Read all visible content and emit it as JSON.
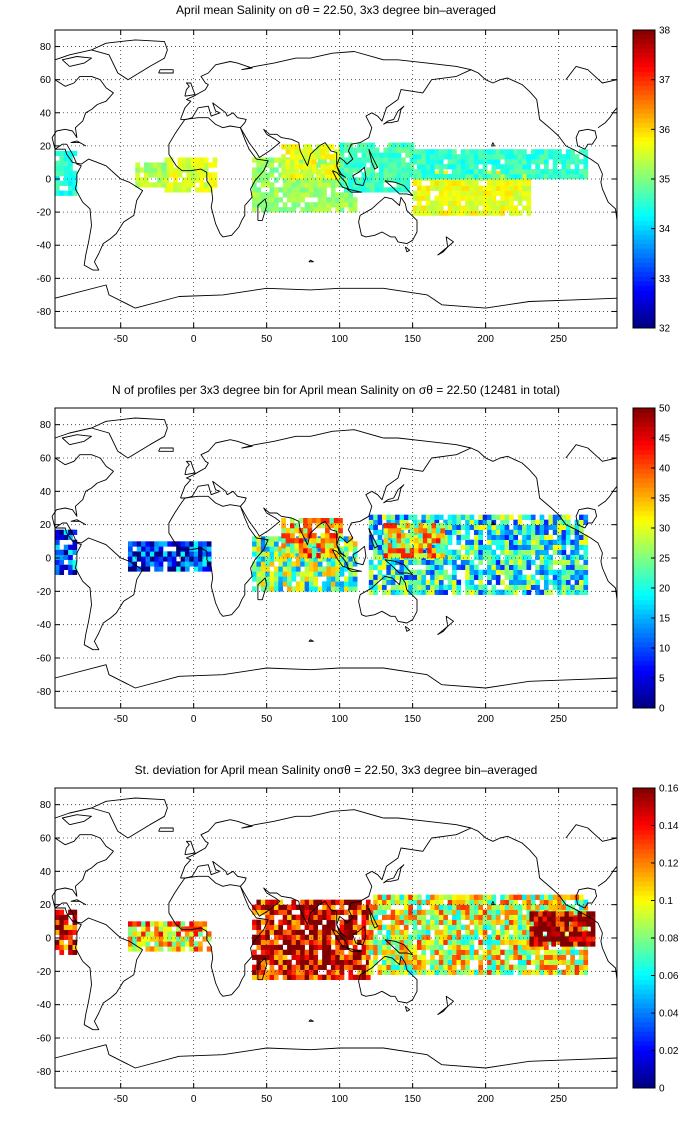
{
  "chart_data": [
    {
      "type": "heatmap",
      "id": "p1",
      "title": "April mean Salinity on σθ = 22.50, 3x3 degree bin–averaged",
      "x_ticks": [
        "-50",
        "0",
        "50",
        "100",
        "150",
        "200",
        "250"
      ],
      "y_ticks": [
        "80",
        "60",
        "40",
        "20",
        "0",
        "-20",
        "-40",
        "-60",
        "-80"
      ],
      "xlim": [
        -95,
        290
      ],
      "ylim": [
        -90,
        90
      ],
      "grid": true,
      "colorbar": {
        "min": 32,
        "max": 38,
        "ticks": [
          "38",
          "37",
          "36",
          "35",
          "34",
          "33",
          "32"
        ]
      },
      "regions": [
        {
          "x0": -95,
          "x1": -80,
          "y0": -10,
          "y1": 15,
          "value": 34.4
        },
        {
          "x0": -20,
          "x1": 15,
          "y0": -8,
          "y1": 12,
          "value": 35.5
        },
        {
          "x0": -40,
          "x1": -20,
          "y0": -5,
          "y1": 10,
          "value": 35.2
        },
        {
          "x0": 40,
          "x1": 110,
          "y0": -20,
          "y1": 12,
          "value": 35.1
        },
        {
          "x0": 60,
          "x1": 100,
          "y0": 0,
          "y1": 20,
          "value": 35.6
        },
        {
          "x0": 100,
          "x1": 150,
          "y0": -8,
          "y1": 22,
          "value": 34.6
        },
        {
          "x0": 150,
          "x1": 230,
          "y0": -22,
          "y1": 5,
          "value": 35.6
        },
        {
          "x0": 150,
          "x1": 270,
          "y0": 0,
          "y1": 18,
          "value": 34.5
        }
      ]
    },
    {
      "type": "heatmap",
      "id": "p2",
      "title": "N of profiles per 3x3 degree bin for April mean Salinity on σθ = 22.50 (12481 in total)",
      "x_ticks": [
        "-50",
        "0",
        "50",
        "100",
        "150",
        "200",
        "250"
      ],
      "y_ticks": [
        "80",
        "60",
        "40",
        "20",
        "0",
        "-20",
        "-40",
        "-60",
        "-80"
      ],
      "xlim": [
        -95,
        290
      ],
      "ylim": [
        -90,
        90
      ],
      "grid": true,
      "colorbar": {
        "min": 0,
        "max": 50,
        "ticks": [
          "50",
          "45",
          "40",
          "35",
          "30",
          "25",
          "20",
          "15",
          "10",
          "5",
          "0"
        ]
      },
      "regions": [
        {
          "x0": -95,
          "x1": -80,
          "y0": -10,
          "y1": 15,
          "value": 8
        },
        {
          "x0": -45,
          "x1": 10,
          "y0": -8,
          "y1": 8,
          "value": 6
        },
        {
          "x0": 40,
          "x1": 110,
          "y0": -20,
          "y1": 12,
          "value": 22
        },
        {
          "x0": 60,
          "x1": 100,
          "y0": 0,
          "y1": 22,
          "value": 32
        },
        {
          "x0": 120,
          "x1": 270,
          "y0": -22,
          "y1": 25,
          "value": 18
        },
        {
          "x0": 130,
          "x1": 170,
          "y0": 0,
          "y1": 20,
          "value": 30
        }
      ]
    },
    {
      "type": "heatmap",
      "id": "p3",
      "title": "St. deviation for April mean Salinity onσθ = 22.50, 3x3 degree bin–averaged",
      "x_ticks": [
        "-50",
        "0",
        "50",
        "100",
        "150",
        "200",
        "250"
      ],
      "y_ticks": [
        "80",
        "60",
        "40",
        "20",
        "0",
        "-20",
        "-40",
        "-60",
        "-80"
      ],
      "xlim": [
        -95,
        290
      ],
      "ylim": [
        -90,
        90
      ],
      "grid": true,
      "colorbar": {
        "min": 0,
        "max": 0.16,
        "ticks": [
          "0.16",
          "0.14",
          "0.12",
          "0.1",
          "0.08",
          "0.06",
          "0.04",
          "0.02",
          "0"
        ]
      },
      "regions": [
        {
          "x0": -95,
          "x1": -80,
          "y0": -10,
          "y1": 15,
          "value": 0.14
        },
        {
          "x0": -45,
          "x1": 10,
          "y0": -8,
          "y1": 8,
          "value": 0.1
        },
        {
          "x0": 40,
          "x1": 120,
          "y0": -25,
          "y1": 22,
          "value": 0.14
        },
        {
          "x0": 120,
          "x1": 270,
          "y0": -22,
          "y1": 25,
          "value": 0.09
        },
        {
          "x0": 230,
          "x1": 275,
          "y0": -5,
          "y1": 15,
          "value": 0.15
        }
      ]
    }
  ]
}
